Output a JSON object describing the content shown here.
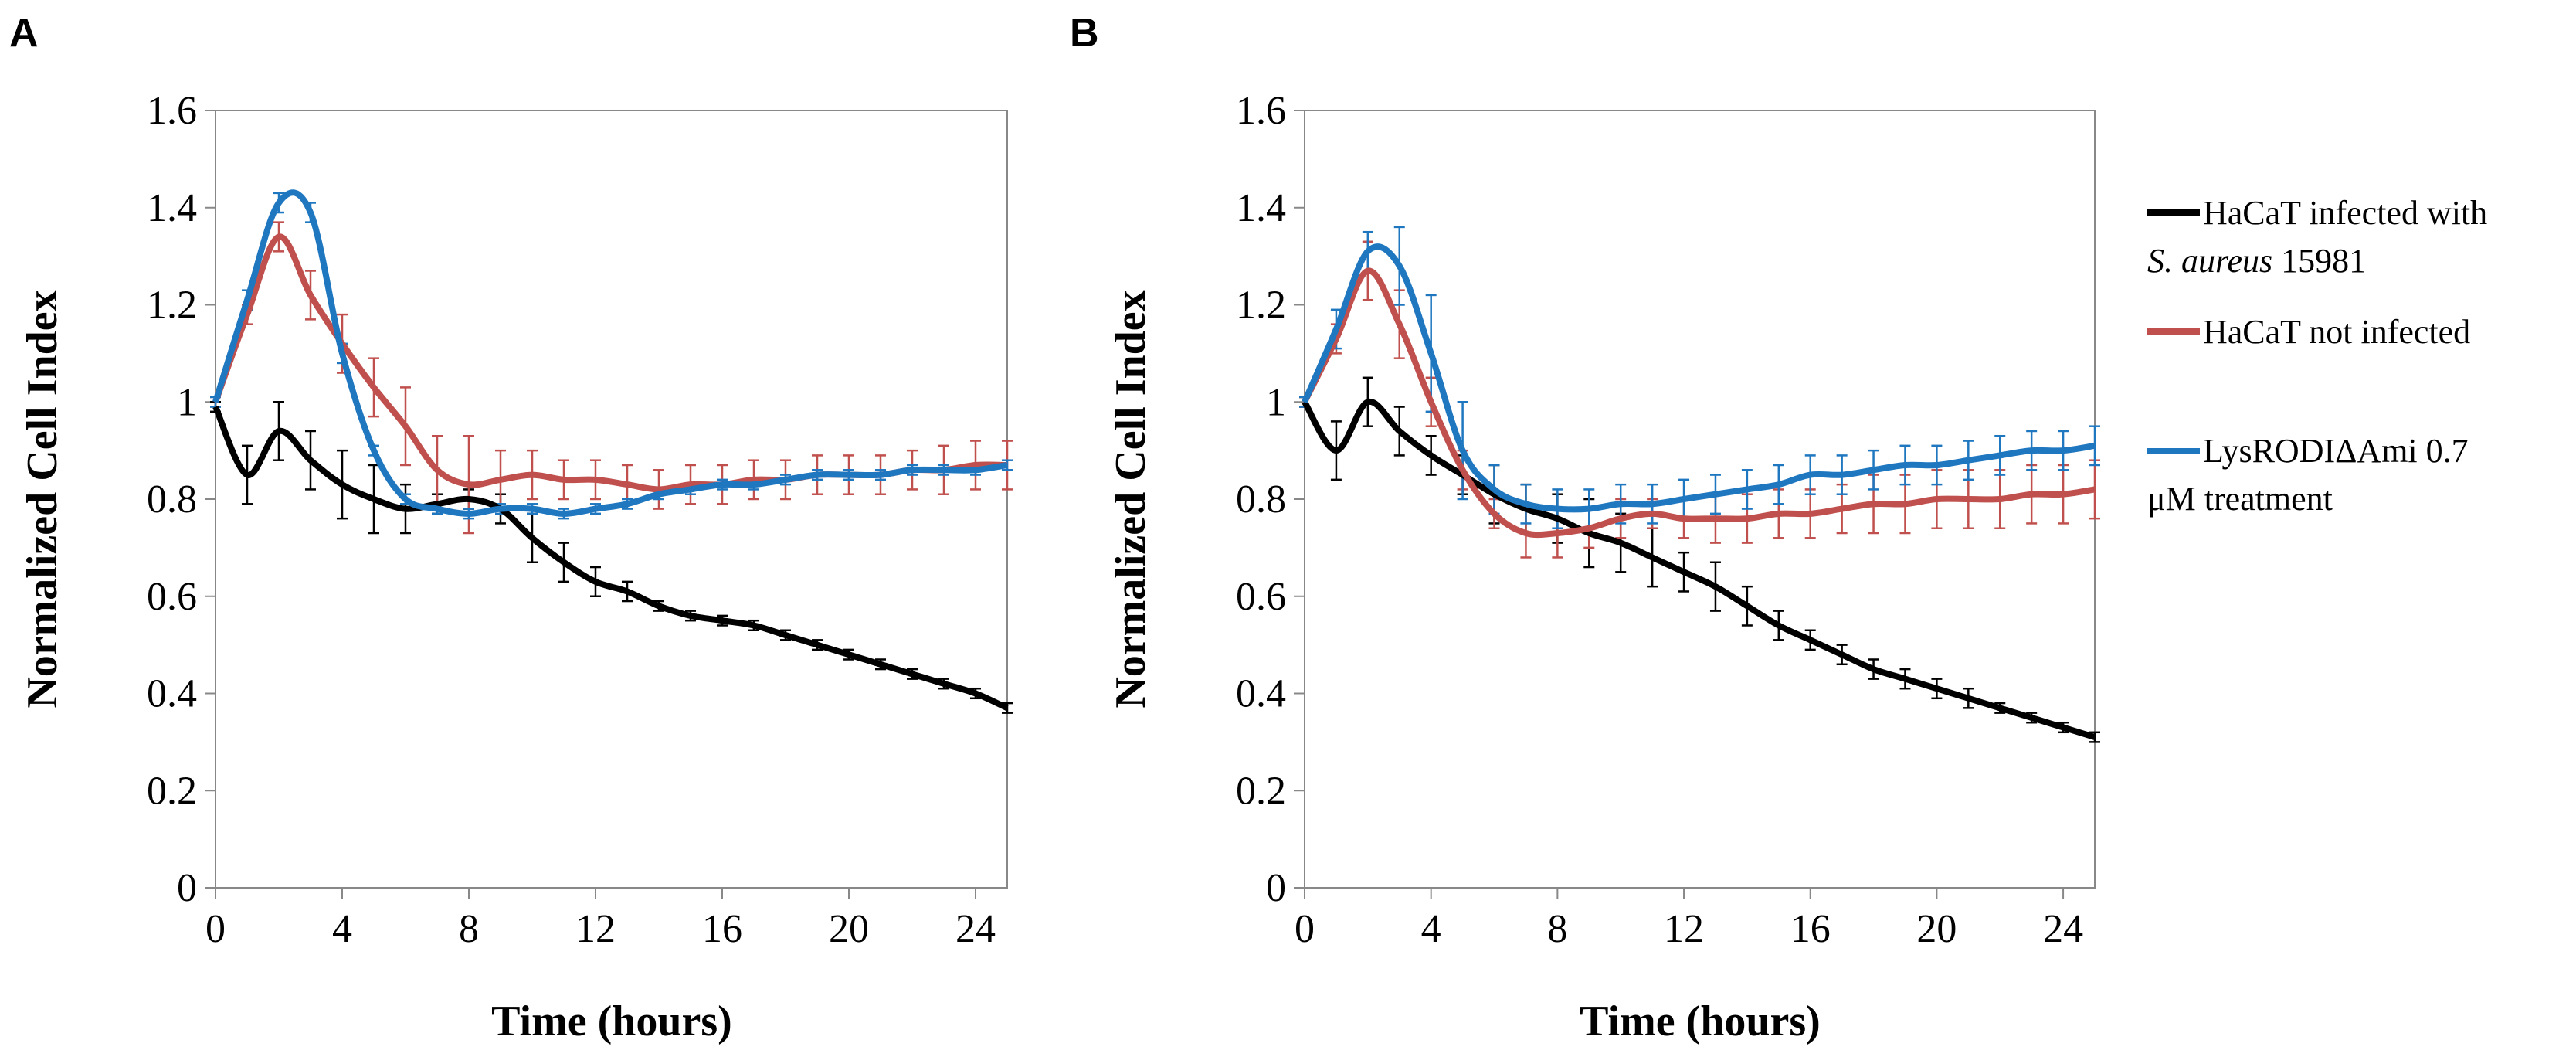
{
  "chart_data": [
    {
      "panel": "A",
      "type": "line",
      "xlabel": "Time  (hours)",
      "ylabel": "Normalized  Cell Index",
      "xlim": [
        0,
        25
      ],
      "ylim": [
        0,
        1.6
      ],
      "xticks": [
        0,
        4,
        8,
        12,
        16,
        20,
        24
      ],
      "yticks": [
        0,
        0.2,
        0.4,
        0.6,
        0.8,
        1,
        1.2,
        1.4,
        1.6
      ],
      "ytick_labels": [
        "0",
        "0.2",
        "0.4",
        "0.6",
        "0.8",
        "1",
        "1.2",
        "1.4",
        "1.6"
      ],
      "xtick_labels": [
        "0",
        "4",
        "8",
        "12",
        "16",
        "20",
        "24"
      ],
      "series": [
        {
          "name": "HaCaT infected with S. aureus 15981",
          "color": "#000000",
          "x": [
            0,
            1,
            2,
            3,
            4,
            5,
            6,
            7,
            8,
            9,
            10,
            11,
            12,
            13,
            14,
            15,
            16,
            17,
            18,
            19,
            20,
            21,
            22,
            23,
            24,
            25
          ],
          "y": [
            0.99,
            0.85,
            0.94,
            0.88,
            0.83,
            0.8,
            0.78,
            0.79,
            0.8,
            0.78,
            0.72,
            0.67,
            0.63,
            0.61,
            0.58,
            0.56,
            0.55,
            0.54,
            0.52,
            0.5,
            0.48,
            0.46,
            0.44,
            0.42,
            0.4,
            0.37
          ],
          "err": [
            0.01,
            0.06,
            0.06,
            0.06,
            0.07,
            0.07,
            0.05,
            0.02,
            0.02,
            0.03,
            0.05,
            0.04,
            0.03,
            0.02,
            0.01,
            0.01,
            0.01,
            0.01,
            0.01,
            0.01,
            0.01,
            0.01,
            0.01,
            0.01,
            0.01,
            0.01
          ]
        },
        {
          "name": "HaCaT not infected",
          "color": "#c0504d",
          "x": [
            0,
            1,
            2,
            3,
            4,
            5,
            6,
            7,
            8,
            9,
            10,
            11,
            12,
            13,
            14,
            15,
            16,
            17,
            18,
            19,
            20,
            21,
            22,
            23,
            24,
            25
          ],
          "y": [
            1.0,
            1.18,
            1.34,
            1.22,
            1.12,
            1.03,
            0.95,
            0.86,
            0.83,
            0.84,
            0.85,
            0.84,
            0.84,
            0.83,
            0.82,
            0.83,
            0.83,
            0.84,
            0.84,
            0.85,
            0.85,
            0.85,
            0.86,
            0.86,
            0.87,
            0.87
          ],
          "err": [
            0.01,
            0.02,
            0.03,
            0.05,
            0.06,
            0.06,
            0.08,
            0.07,
            0.1,
            0.06,
            0.05,
            0.04,
            0.04,
            0.04,
            0.04,
            0.04,
            0.04,
            0.04,
            0.04,
            0.04,
            0.04,
            0.04,
            0.04,
            0.05,
            0.05,
            0.05
          ]
        },
        {
          "name": "LysRODIΔAmi 0.7 μM treatment",
          "color": "#1f77c0",
          "x": [
            0,
            1,
            2,
            3,
            4,
            5,
            6,
            7,
            8,
            9,
            10,
            11,
            12,
            13,
            14,
            15,
            16,
            17,
            18,
            19,
            20,
            21,
            22,
            23,
            24,
            25
          ],
          "y": [
            1.0,
            1.21,
            1.41,
            1.39,
            1.1,
            0.9,
            0.8,
            0.78,
            0.77,
            0.78,
            0.78,
            0.77,
            0.78,
            0.79,
            0.81,
            0.82,
            0.83,
            0.83,
            0.84,
            0.85,
            0.85,
            0.85,
            0.86,
            0.86,
            0.86,
            0.87
          ],
          "err": [
            0.01,
            0.02,
            0.02,
            0.02,
            0.02,
            0.01,
            0.01,
            0.01,
            0.01,
            0.01,
            0.01,
            0.01,
            0.01,
            0.01,
            0.01,
            0.01,
            0.01,
            0.01,
            0.01,
            0.01,
            0.01,
            0.01,
            0.01,
            0.01,
            0.01,
            0.01
          ]
        }
      ]
    },
    {
      "panel": "B",
      "type": "line",
      "xlabel": "Time  (hours)",
      "ylabel": "Normalized  Cell Index",
      "xlim": [
        0,
        25
      ],
      "ylim": [
        0,
        1.6
      ],
      "xticks": [
        0,
        4,
        8,
        12,
        16,
        20,
        24
      ],
      "yticks": [
        0,
        0.2,
        0.4,
        0.6,
        0.8,
        1,
        1.2,
        1.4,
        1.6
      ],
      "ytick_labels": [
        "0",
        "0.2",
        "0.4",
        "0.6",
        "0.8",
        "1",
        "1.2",
        "1.4",
        "1.6"
      ],
      "xtick_labels": [
        "0",
        "4",
        "8",
        "12",
        "16",
        "20",
        "24"
      ],
      "series": [
        {
          "name": "HaCaT infected with S. aureus 15981",
          "color": "#000000",
          "x": [
            0,
            1,
            2,
            3,
            4,
            5,
            6,
            7,
            8,
            9,
            10,
            11,
            12,
            13,
            14,
            15,
            16,
            17,
            18,
            19,
            20,
            21,
            22,
            23,
            24,
            25
          ],
          "y": [
            1.0,
            0.9,
            1.0,
            0.94,
            0.89,
            0.85,
            0.81,
            0.78,
            0.76,
            0.73,
            0.71,
            0.68,
            0.65,
            0.62,
            0.58,
            0.54,
            0.51,
            0.48,
            0.45,
            0.43,
            0.41,
            0.39,
            0.37,
            0.35,
            0.33,
            0.31
          ],
          "err": [
            0.01,
            0.06,
            0.05,
            0.05,
            0.04,
            0.04,
            0.06,
            0.05,
            0.05,
            0.07,
            0.06,
            0.06,
            0.04,
            0.05,
            0.04,
            0.03,
            0.02,
            0.02,
            0.02,
            0.02,
            0.02,
            0.02,
            0.01,
            0.01,
            0.01,
            0.01
          ]
        },
        {
          "name": "HaCaT not infected",
          "color": "#c0504d",
          "x": [
            0,
            1,
            2,
            3,
            4,
            5,
            6,
            7,
            8,
            9,
            10,
            11,
            12,
            13,
            14,
            15,
            16,
            17,
            18,
            19,
            20,
            21,
            22,
            23,
            24,
            25
          ],
          "y": [
            1.0,
            1.13,
            1.27,
            1.16,
            1.0,
            0.86,
            0.77,
            0.73,
            0.73,
            0.74,
            0.76,
            0.77,
            0.76,
            0.76,
            0.76,
            0.77,
            0.77,
            0.78,
            0.79,
            0.79,
            0.8,
            0.8,
            0.8,
            0.81,
            0.81,
            0.82
          ],
          "err": [
            0.01,
            0.03,
            0.06,
            0.07,
            0.05,
            0.04,
            0.03,
            0.05,
            0.05,
            0.04,
            0.04,
            0.03,
            0.04,
            0.05,
            0.05,
            0.05,
            0.05,
            0.05,
            0.06,
            0.06,
            0.06,
            0.06,
            0.06,
            0.06,
            0.06,
            0.06
          ]
        },
        {
          "name": "LysRODIΔAmi 0.7 μM treatment",
          "color": "#1f77c0",
          "x": [
            0,
            1,
            2,
            3,
            4,
            5,
            6,
            7,
            8,
            9,
            10,
            11,
            12,
            13,
            14,
            15,
            16,
            17,
            18,
            19,
            20,
            21,
            22,
            23,
            24,
            25
          ],
          "y": [
            1.0,
            1.15,
            1.31,
            1.28,
            1.1,
            0.9,
            0.82,
            0.79,
            0.78,
            0.78,
            0.79,
            0.79,
            0.8,
            0.81,
            0.82,
            0.83,
            0.85,
            0.85,
            0.86,
            0.87,
            0.87,
            0.88,
            0.89,
            0.9,
            0.9,
            0.91
          ],
          "err": [
            0.01,
            0.04,
            0.04,
            0.08,
            0.12,
            0.1,
            0.05,
            0.04,
            0.04,
            0.04,
            0.04,
            0.04,
            0.04,
            0.04,
            0.04,
            0.04,
            0.04,
            0.04,
            0.04,
            0.04,
            0.04,
            0.04,
            0.04,
            0.04,
            0.04,
            0.04
          ]
        }
      ]
    }
  ],
  "legend": {
    "items": [
      {
        "line1": "HaCaT infected with",
        "line2_italic": "S. aureus",
        "line2_rest": " 15981",
        "color": "#000000"
      },
      {
        "line1": "HaCaT not infected",
        "color": "#c0504d"
      },
      {
        "line1": "LysRODIΔAmi 0.7",
        "line2": "μM treatment",
        "color": "#1f77c0"
      }
    ]
  }
}
